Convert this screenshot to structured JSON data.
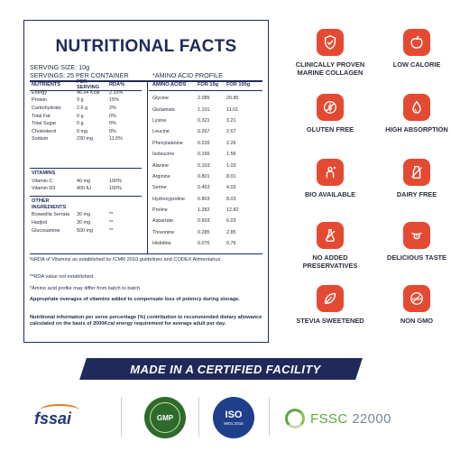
{
  "panel": {
    "title": "NUTRITIONAL FACTS",
    "serving_size": "SERVING SIZE: 10g",
    "servings": "SERVINGS: 25 PER CONTAINER",
    "amino_profile_title": "*AMINO ACID PROFILE"
  },
  "nutrients": {
    "headers": [
      "NUTRIENTS",
      "PER SERVING",
      "RDA%"
    ],
    "rows": [
      [
        "Energy",
        "46.64 Kcal",
        "2.33%"
      ],
      [
        "Protein",
        "9 g",
        "15%"
      ],
      [
        "Carbohydrate",
        "2.6 g",
        "2%"
      ],
      [
        "Total Fat",
        "0 g",
        "0%"
      ],
      [
        "Total Sugar",
        "0 g",
        "0%"
      ],
      [
        "Cholesterol",
        "0 mg",
        "0%"
      ],
      [
        "Sodium",
        "230 mg",
        "11.5%"
      ]
    ]
  },
  "vitamins": {
    "title": "VITAMINS",
    "rows": [
      [
        "Vitamin C",
        "40 mg",
        "100%"
      ],
      [
        "Vitamin D3",
        "400 IU",
        "100%"
      ]
    ]
  },
  "other": {
    "title": "OTHER INGREDIENTS",
    "rows": [
      [
        "Boswellia Serrata",
        "30 mg",
        "**"
      ],
      [
        "Hadjod",
        "30 mg",
        "**"
      ],
      [
        "Glucosamine",
        "500 mg",
        "**"
      ]
    ]
  },
  "amino": {
    "headers": [
      "AMINO ACIDS",
      "FOR 10g",
      "FOR 100g"
    ],
    "rows": [
      [
        "Glycine",
        "2.085",
        "20.85"
      ],
      [
        "Glutamate",
        "1.101",
        "11.01"
      ],
      [
        "Lysine",
        "0.321",
        "3.21"
      ],
      [
        "Leucine",
        "0.267",
        "2.67"
      ],
      [
        "Phenylalanine",
        "0.226",
        "2.26"
      ],
      [
        "Isoleucine",
        "0.156",
        "1.56"
      ],
      [
        "Alanine",
        "0.103",
        "1.03"
      ],
      [
        "Arginine",
        "0.801",
        "8.01"
      ],
      [
        "Serine",
        "0.403",
        "4.03"
      ],
      [
        "Hydroxyproline",
        "0.803",
        "8.03"
      ],
      [
        "Proline",
        "1.282",
        "12.82"
      ],
      [
        "Aspartate",
        "0.603",
        "6.03"
      ],
      [
        "Threonine",
        "0.285",
        "2.85"
      ],
      [
        "Histidine",
        "0.076",
        "0.76"
      ]
    ]
  },
  "notes": {
    "rda": "%RDA of Vitamins as established by ICMR 2010 guidelines and CODEX Alimentarius.",
    "rda_na": "**RDA value not established.",
    "amino": "*Amino acid profile may differ from batch to batch.",
    "overages": "Appropriate overages of vitamins added to compensate loss of potency during storage.",
    "nutritional": "Nutritional information per serve percentage (%) contribution to recommended dietary allowance calculated on the basis of 2000Kcal energy requirement for average adult per day."
  },
  "features": [
    {
      "label": "CLINICALLY PROVEN MARINE COLLAGEN",
      "icon": "shield-check-icon"
    },
    {
      "label": "LOW CALORIE",
      "icon": "apple-icon"
    },
    {
      "label": "GLUTEN FREE",
      "icon": "gluten-free-icon"
    },
    {
      "label": "HIGH ABSORPTION",
      "icon": "absorption-icon"
    },
    {
      "label": "BIO AVAILABLE",
      "icon": "bio-available-icon"
    },
    {
      "label": "DAIRY FREE",
      "icon": "dairy-free-icon"
    },
    {
      "label": "NO ADDED PRESERVATIVES",
      "icon": "no-preservatives-icon"
    },
    {
      "label": "DELICIOUS TASTE",
      "icon": "tongue-icon"
    },
    {
      "label": "STEVIA SWEETENED",
      "icon": "leaf-icon"
    },
    {
      "label": "NON GMO",
      "icon": "non-gmo-icon"
    }
  ],
  "banner": {
    "text": "MADE IN A CERTIFIED FACILITY"
  },
  "logos": {
    "fssai": "fssai",
    "gmp": "GMP",
    "iso": "ISO",
    "iso_number": "9001:2015",
    "fssc_prefix": "FSSC",
    "fssc_number": "22000"
  },
  "colors": {
    "accent": "#e44a32",
    "navy": "#1f2a5a",
    "fssc_green": "#5aa83a"
  }
}
